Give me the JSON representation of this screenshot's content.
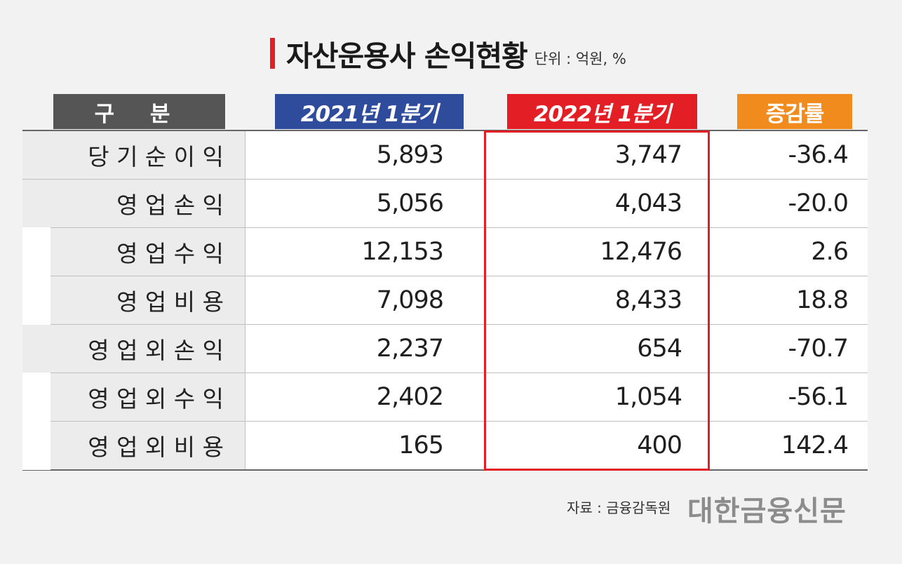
{
  "title": "자산운용사 손익현황",
  "unit": "단위 : 억원, %",
  "headers": {
    "category": "구 분",
    "q2021": "2021년 1분기",
    "q2022": "2022년 1분기",
    "change": "증감률"
  },
  "rows": [
    {
      "label": "당 기 순 이 익",
      "q2021": "5,893",
      "q2022": "3,747",
      "change": "-36.4"
    },
    {
      "label": "영 업 손 익",
      "q2021": "5,056",
      "q2022": "4,043",
      "change": "-20.0"
    },
    {
      "label": "영 업 수 익",
      "q2021": "12,153",
      "q2022": "12,476",
      "change": "2.6"
    },
    {
      "label": "영 업 비 용",
      "q2021": "7,098",
      "q2022": "8,433",
      "change": "18.8"
    },
    {
      "label": "영 업 외 손 익",
      "q2021": "2,237",
      "q2022": "654",
      "change": "-70.7"
    },
    {
      "label": "영 업 외 수 익",
      "q2021": "2,402",
      "q2022": "1,054",
      "change": "-56.1"
    },
    {
      "label": "영 업 외 비 용",
      "q2021": "165",
      "q2022": "400",
      "change": "142.4"
    }
  ],
  "source": "자료 : 금융감독원",
  "brand": "대한금융신문",
  "colors": {
    "accent_red": "#e31e24",
    "header_gray": "#555555",
    "header_blue": "#2f4b9b",
    "header_orange": "#f28b1e"
  }
}
